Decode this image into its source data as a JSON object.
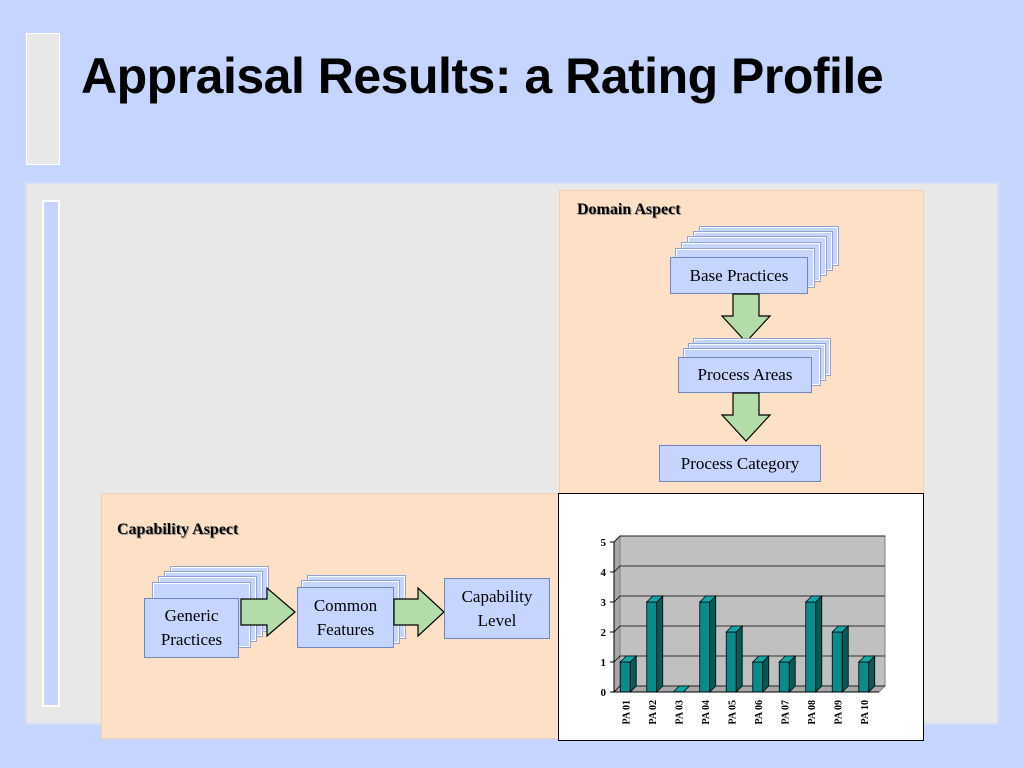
{
  "slide": {
    "title": "Appraisal Results:  a Rating Profile"
  },
  "domain": {
    "label": "Domain Aspect",
    "base_practices": "Base Practices",
    "process_areas": "Process Areas",
    "process_category": "Process Category"
  },
  "capability": {
    "label": "Capability Aspect",
    "generic_practices": "Generic Practices",
    "common_features": "Common Features",
    "capability_level": "Capability Level"
  },
  "colors": {
    "background": "#c5d5fd",
    "aspect_panel": "#fde0c5",
    "box_fill": "#c5d5fd",
    "arrow_fill": "#b3dca8",
    "bar_fill": "#0a8b8b"
  },
  "chart_data": {
    "type": "bar",
    "categories": [
      "PA 01",
      "PA 02",
      "PA 03",
      "PA 04",
      "PA 05",
      "PA 06",
      "PA 07",
      "PA 08",
      "PA 09",
      "PA 10"
    ],
    "values": [
      1,
      3,
      0,
      3,
      2,
      1,
      1,
      3,
      2,
      1
    ],
    "yticks": [
      "0",
      "1",
      "2",
      "3",
      "4",
      "5"
    ],
    "ylim": [
      0,
      5
    ],
    "grid": true,
    "legend": "none",
    "style": "3d"
  }
}
